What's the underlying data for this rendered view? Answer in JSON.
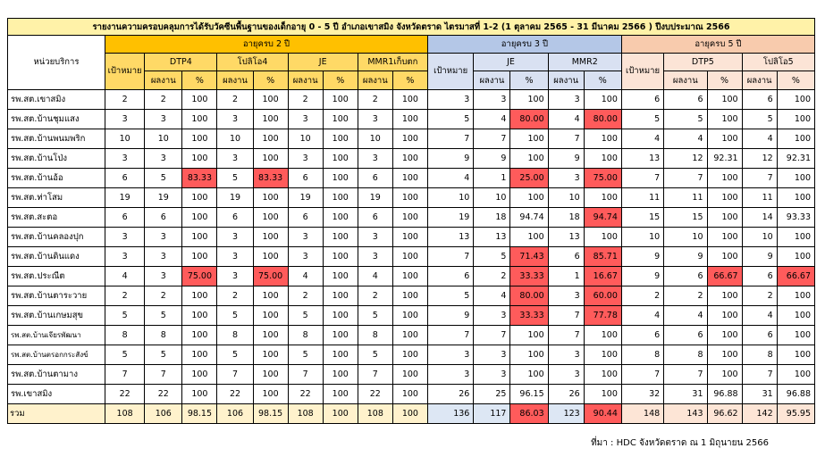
{
  "title": "รายงานความครอบคลุมการได้รับวัคซีนพื้นฐานของเด็กอายุ 0 - 5 ปี อำเภอเขาสมิง จังหวัดตราด ไตรมาสที่ 1-2 (1 ตุลาคม 2565 - 31 มีนาคม 2566 ) ปีงบประมาณ 2566",
  "headers": {
    "unit": "หน่วยบริการ",
    "age2": "อายุครบ 2 ปี",
    "age3": "อายุครบ 3 ปี",
    "age5": "อายุครบ 5 ปี",
    "target": "เป้าหมาย",
    "dtp4": "DTP4",
    "polio4": "โปลิโอ4",
    "je": "JE",
    "mmr1": "MMR1เก็บตก",
    "mmr2": "MMR2",
    "dtp5": "DTP5",
    "polio5": "โปลิโอ5",
    "result": "ผลงาน",
    "pct": "%"
  },
  "rows": [
    {
      "name": "รพ.สต.เขาสมิง",
      "v": [
        "2",
        "2",
        "100",
        "2",
        "100",
        "2",
        "100",
        "2",
        "100",
        "3",
        "3",
        "100",
        "3",
        "100",
        "6",
        "6",
        "100",
        "6",
        "100"
      ],
      "red": []
    },
    {
      "name": "รพ.สต.บ้านชุมแสง",
      "v": [
        "3",
        "3",
        "100",
        "3",
        "100",
        "3",
        "100",
        "3",
        "100",
        "5",
        "4",
        "80.00",
        "4",
        "80.00",
        "5",
        "5",
        "100",
        "5",
        "100"
      ],
      "red": [
        11,
        13
      ]
    },
    {
      "name": "รพ.สต.บ้านพนมพริก",
      "v": [
        "10",
        "10",
        "100",
        "10",
        "100",
        "10",
        "100",
        "10",
        "100",
        "7",
        "7",
        "100",
        "7",
        "100",
        "4",
        "4",
        "100",
        "4",
        "100"
      ],
      "red": []
    },
    {
      "name": "รพ.สต.บ้านโป่ง",
      "v": [
        "3",
        "3",
        "100",
        "3",
        "100",
        "3",
        "100",
        "3",
        "100",
        "9",
        "9",
        "100",
        "9",
        "100",
        "13",
        "12",
        "92.31",
        "12",
        "92.31"
      ],
      "red": []
    },
    {
      "name": "รพ.สต.บ้านอ้อ",
      "v": [
        "6",
        "5",
        "83.33",
        "5",
        "83.33",
        "6",
        "100",
        "6",
        "100",
        "4",
        "1",
        "25.00",
        "3",
        "75.00",
        "7",
        "7",
        "100",
        "7",
        "100"
      ],
      "red": [
        2,
        4,
        11,
        13
      ]
    },
    {
      "name": "รพ.สต.ท่าโสม",
      "v": [
        "19",
        "19",
        "100",
        "19",
        "100",
        "19",
        "100",
        "19",
        "100",
        "10",
        "10",
        "100",
        "10",
        "100",
        "11",
        "11",
        "100",
        "11",
        "100"
      ],
      "red": []
    },
    {
      "name": "รพ.สต.สะตอ",
      "v": [
        "6",
        "6",
        "100",
        "6",
        "100",
        "6",
        "100",
        "6",
        "100",
        "19",
        "18",
        "94.74",
        "18",
        "94.74",
        "15",
        "15",
        "100",
        "14",
        "93.33"
      ],
      "red": [
        13
      ]
    },
    {
      "name": "รพ.สต.บ้านคลองปุก",
      "v": [
        "3",
        "3",
        "100",
        "3",
        "100",
        "3",
        "100",
        "3",
        "100",
        "13",
        "13",
        "100",
        "13",
        "100",
        "10",
        "10",
        "100",
        "10",
        "100"
      ],
      "red": []
    },
    {
      "name": "รพ.สต.บ้านดินแดง",
      "v": [
        "3",
        "3",
        "100",
        "3",
        "100",
        "3",
        "100",
        "3",
        "100",
        "7",
        "5",
        "71.43",
        "6",
        "85.71",
        "9",
        "9",
        "100",
        "9",
        "100"
      ],
      "red": [
        11,
        13
      ]
    },
    {
      "name": "รพ.สต.ประณีต",
      "v": [
        "4",
        "3",
        "75.00",
        "3",
        "75.00",
        "4",
        "100",
        "4",
        "100",
        "6",
        "2",
        "33.33",
        "1",
        "16.67",
        "9",
        "6",
        "66.67",
        "6",
        "66.67"
      ],
      "red": [
        2,
        4,
        11,
        13,
        16,
        18
      ]
    },
    {
      "name": "รพ.สต.บ้านตาระวาย",
      "v": [
        "2",
        "2",
        "100",
        "2",
        "100",
        "2",
        "100",
        "2",
        "100",
        "5",
        "4",
        "80.00",
        "3",
        "60.00",
        "2",
        "2",
        "100",
        "2",
        "100"
      ],
      "red": [
        11,
        13
      ]
    },
    {
      "name": "รพ.สต.บ้านเกษมสุข",
      "v": [
        "5",
        "5",
        "100",
        "5",
        "100",
        "5",
        "100",
        "5",
        "100",
        "9",
        "3",
        "33.33",
        "7",
        "77.78",
        "4",
        "4",
        "100",
        "4",
        "100"
      ],
      "red": [
        11,
        13
      ]
    },
    {
      "name": "รพ.สต.บ้านเจียรพัฒนา",
      "v": [
        "8",
        "8",
        "100",
        "8",
        "100",
        "8",
        "100",
        "8",
        "100",
        "7",
        "7",
        "100",
        "7",
        "100",
        "6",
        "6",
        "100",
        "6",
        "100"
      ],
      "red": [],
      "small": true
    },
    {
      "name": "รพ.สต.บ้านตรอกกระสังข์",
      "v": [
        "5",
        "5",
        "100",
        "5",
        "100",
        "5",
        "100",
        "5",
        "100",
        "3",
        "3",
        "100",
        "3",
        "100",
        "8",
        "8",
        "100",
        "8",
        "100"
      ],
      "red": [],
      "small": true
    },
    {
      "name": "รพ.สต.บ้านตามาง",
      "v": [
        "7",
        "7",
        "100",
        "7",
        "100",
        "7",
        "100",
        "7",
        "100",
        "3",
        "3",
        "100",
        "3",
        "100",
        "7",
        "7",
        "100",
        "7",
        "100"
      ],
      "red": []
    },
    {
      "name": "รพ.เขาสมิง",
      "v": [
        "22",
        "22",
        "100",
        "22",
        "100",
        "22",
        "100",
        "22",
        "100",
        "26",
        "25",
        "96.15",
        "26",
        "100",
        "32",
        "31",
        "96.88",
        "31",
        "96.88"
      ],
      "red": []
    }
  ],
  "total": {
    "name": "รวม",
    "v": [
      "108",
      "106",
      "98.15",
      "106",
      "98.15",
      "108",
      "100",
      "108",
      "100",
      "136",
      "117",
      "86.03",
      "123",
      "90.44",
      "148",
      "143",
      "96.62",
      "142",
      "95.95"
    ],
    "red": [
      11,
      13
    ]
  },
  "source": "ที่มา : HDC จังหวัดตราด ณ 1 มิถุนายน 2566"
}
